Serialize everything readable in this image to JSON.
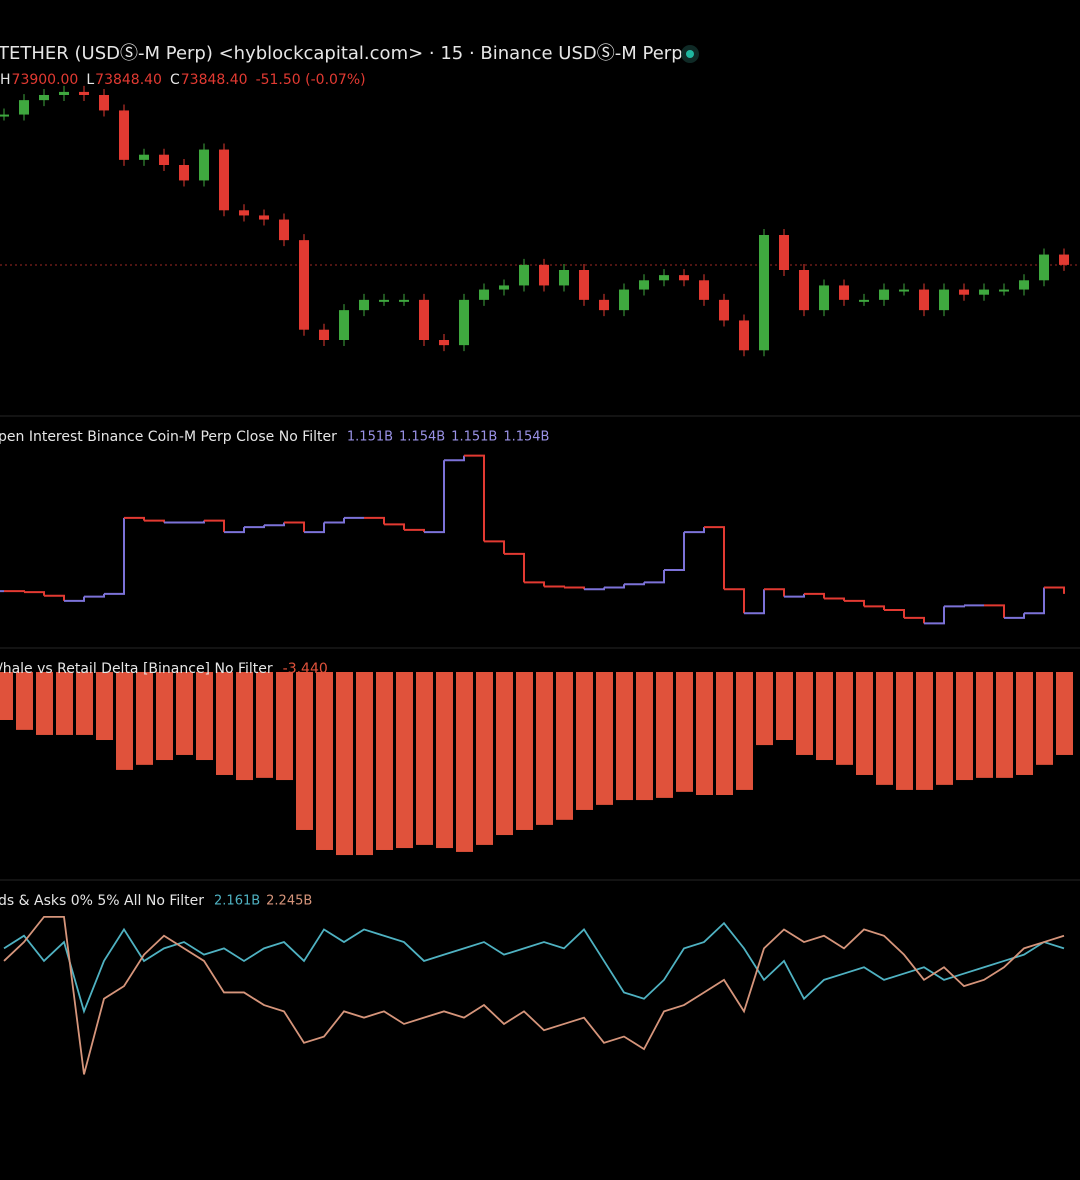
{
  "chart_data": [
    {
      "type": "candlestick",
      "title": "TETHER (USDⓈ-M Perp) <hyblockcapital.com> · 15 · Binance USDⓈ-M Perp",
      "ohlc": [
        {
          "key": "H",
          "label": "73900.00"
        },
        {
          "key": "L",
          "label": "73848.40"
        },
        {
          "key": "C",
          "label": "73848.40",
          "value": 73848.4
        }
      ],
      "change": "-51.50 (-0.07%)",
      "up_color": "#3fa83f",
      "down_color": "#e23a32",
      "ylim": [
        72440,
        75840
      ],
      "values": [
        75310,
        75450,
        75500,
        75530,
        75500,
        75350,
        74870,
        74920,
        74820,
        74670,
        74970,
        74380,
        74330,
        74290,
        74090,
        73220,
        73120,
        73410,
        73510,
        73510,
        73510,
        73120,
        73070,
        73510,
        73610,
        73650,
        73850,
        73650,
        73800,
        73510,
        73410,
        73610,
        73700,
        73750,
        73700,
        73510,
        73310,
        73020,
        74140,
        73800,
        73410,
        73650,
        73510,
        73510,
        73610,
        73610,
        73410,
        73610,
        73560,
        73610,
        73610,
        73700,
        73950,
        73850
      ]
    },
    {
      "type": "step",
      "title": "pen Interest Binance Coin-M Perp Close No Filter",
      "legend_values": [
        "1.151B",
        "1.154B",
        "1.151B",
        "1.154B"
      ],
      "up_color": "#7c72d8",
      "down_color": "#e23a32",
      "ylim": [
        1.15,
        1.1546
      ],
      "values": [
        1.15106,
        1.15104,
        1.15096,
        1.15085,
        1.15094,
        1.151,
        1.15265,
        1.15259,
        1.15255,
        1.15255,
        1.15259,
        1.15234,
        1.15245,
        1.15249,
        1.15255,
        1.15234,
        1.15255,
        1.15265,
        1.15265,
        1.15251,
        1.15239,
        1.15234,
        1.1539,
        1.154,
        1.15214,
        1.15187,
        1.15125,
        1.15116,
        1.15114,
        1.1511,
        1.15114,
        1.15121,
        1.15125,
        1.15152,
        1.15234,
        1.15245,
        1.1511,
        1.15058,
        1.1511,
        1.15094,
        1.151,
        1.1509,
        1.15085,
        1.15073,
        1.15065,
        1.15048,
        1.15036,
        1.15073,
        1.15075,
        1.15075,
        1.15048,
        1.15058,
        1.15114,
        1.151
      ]
    },
    {
      "type": "bar",
      "title": "/hale vs Retail Delta [Binance] No Filter",
      "legend_values": [
        "-3.440"
      ],
      "color": "#e0523b",
      "ylim": [
        -8.5,
        0
      ],
      "values": [
        -1.99,
        -2.4,
        -2.61,
        -2.61,
        -2.61,
        -2.82,
        -4.06,
        -3.85,
        -3.65,
        -3.44,
        -3.65,
        -4.27,
        -4.48,
        -4.39,
        -4.48,
        -6.55,
        -7.38,
        -7.59,
        -7.59,
        -7.38,
        -7.3,
        -7.17,
        -7.3,
        -7.46,
        -7.17,
        -6.76,
        -6.55,
        -6.34,
        -6.13,
        -5.72,
        -5.51,
        -5.31,
        -5.31,
        -5.22,
        -4.97,
        -5.1,
        -5.1,
        -4.89,
        -3.03,
        -2.82,
        -3.44,
        -3.65,
        -3.85,
        -4.27,
        -4.68,
        -4.89,
        -4.89,
        -4.68,
        -4.48,
        -4.39,
        -4.39,
        -4.27,
        -3.85,
        -3.44
      ]
    },
    {
      "type": "line",
      "title": "ds & Asks 0% 5% All No Filter",
      "ylim": [
        1.15,
        2.55
      ],
      "series": [
        {
          "name": "2.161B",
          "color": "#4fb2c2",
          "values": [
            2.161,
            2.245,
            2.077,
            2.203,
            1.741,
            2.077,
            2.287,
            2.077,
            2.161,
            2.203,
            2.119,
            2.161,
            2.077,
            2.161,
            2.203,
            2.077,
            2.287,
            2.203,
            2.287,
            2.245,
            2.203,
            2.077,
            2.119,
            2.161,
            2.203,
            2.119,
            2.161,
            2.203,
            2.161,
            2.287,
            2.077,
            1.867,
            1.825,
            1.951,
            2.161,
            2.203,
            2.329,
            2.161,
            1.951,
            2.077,
            1.825,
            1.951,
            1.993,
            2.035,
            1.951,
            1.993,
            2.035,
            1.951,
            1.993,
            2.035,
            2.077,
            2.119,
            2.203,
            2.161
          ]
        },
        {
          "name": "2.245B",
          "color": "#d6957b",
          "values": [
            2.077,
            2.203,
            2.371,
            2.371,
            1.321,
            1.825,
            1.909,
            2.119,
            2.245,
            2.161,
            2.077,
            1.867,
            1.867,
            1.783,
            1.741,
            1.531,
            1.573,
            1.741,
            1.699,
            1.741,
            1.657,
            1.699,
            1.741,
            1.699,
            1.783,
            1.657,
            1.741,
            1.615,
            1.657,
            1.699,
            1.531,
            1.573,
            1.489,
            1.741,
            1.783,
            1.867,
            1.951,
            1.741,
            2.161,
            2.287,
            2.203,
            2.245,
            2.161,
            2.287,
            2.245,
            2.119,
            1.951,
            2.035,
            1.909,
            1.951,
            2.035,
            2.161,
            2.203,
            2.245
          ]
        }
      ]
    }
  ]
}
